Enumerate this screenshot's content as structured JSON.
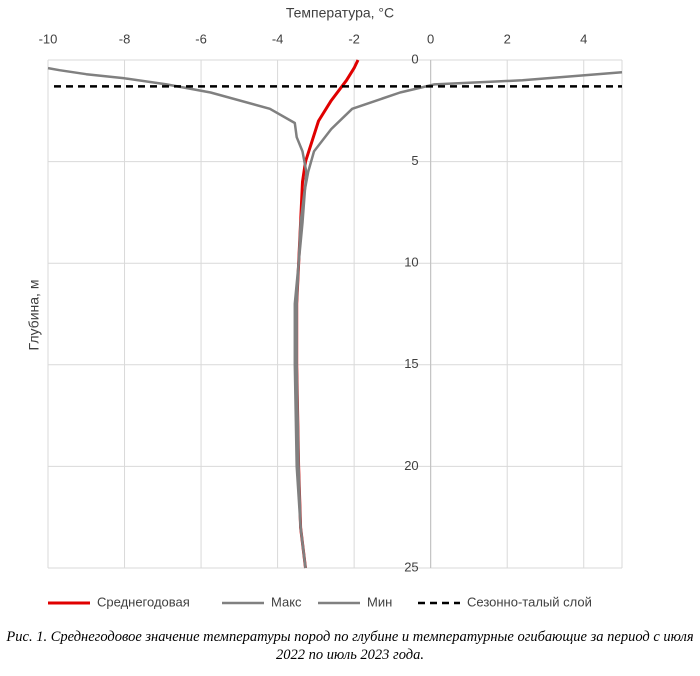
{
  "chart_data": {
    "type": "line",
    "x_label": "Температура, °C",
    "y_label": "Глубина, м",
    "xlim": [
      -10,
      5
    ],
    "xticks": [
      -10,
      -8,
      -6,
      -4,
      -2,
      0,
      2,
      4
    ],
    "ylim": [
      0,
      25
    ],
    "yticks": [
      0,
      5,
      10,
      15,
      20,
      25
    ],
    "y_inverted": true,
    "grid": true,
    "series": [
      {
        "name": "Среднегодовая",
        "color": "#e00000",
        "width": 3,
        "x": [
          -1.9,
          -2.0,
          -2.1,
          -2.2,
          -2.6,
          -2.93,
          -3.1,
          -3.27,
          -3.35,
          -3.4,
          -3.5,
          -3.5,
          -3.45,
          -3.4,
          -3.27
        ],
        "y": [
          0,
          0.4,
          0.7,
          1.0,
          2.0,
          3.0,
          4.0,
          5.0,
          6.0,
          8.0,
          12.0,
          15.0,
          20.0,
          23.0,
          25.0
        ]
      },
      {
        "name": "Макс",
        "color": "#808080",
        "width": 2.5,
        "x": [
          5,
          2.4,
          0.1,
          -0.8,
          -2.05,
          -2.6,
          -3.05,
          -3.2,
          -3.3,
          -3.4,
          -3.5,
          -3.5,
          -3.45,
          -3.4,
          -3.27
        ],
        "y": [
          0.6,
          1.0,
          1.2,
          1.6,
          2.4,
          3.4,
          4.5,
          5.5,
          6.5,
          8.0,
          12.0,
          15.0,
          20.0,
          23.0,
          25.0
        ]
      },
      {
        "name": "Мин",
        "color": "#808080",
        "width": 2.5,
        "x": [
          -10,
          -9.7,
          -9,
          -8,
          -6.9,
          -5.75,
          -4.2,
          -3.55,
          -3.5,
          -3.35,
          -3.25,
          -3.35,
          -3.55,
          -3.55,
          -3.5,
          -3.4,
          -3.27
        ],
        "y": [
          0.4,
          0.5,
          0.7,
          0.9,
          1.2,
          1.6,
          2.4,
          3.1,
          3.8,
          4.5,
          5.5,
          8.0,
          12.0,
          15.0,
          20.0,
          23.0,
          25.0
        ]
      }
    ],
    "reference_line": {
      "name": "Сезонно-талый слой",
      "color": "#000000",
      "depth": 1.3
    }
  },
  "caption": "Рис. 1. Среднегодовое значение температуры пород по глубине и температурные огибающие за период с июля 2022 по июль 2023 года."
}
